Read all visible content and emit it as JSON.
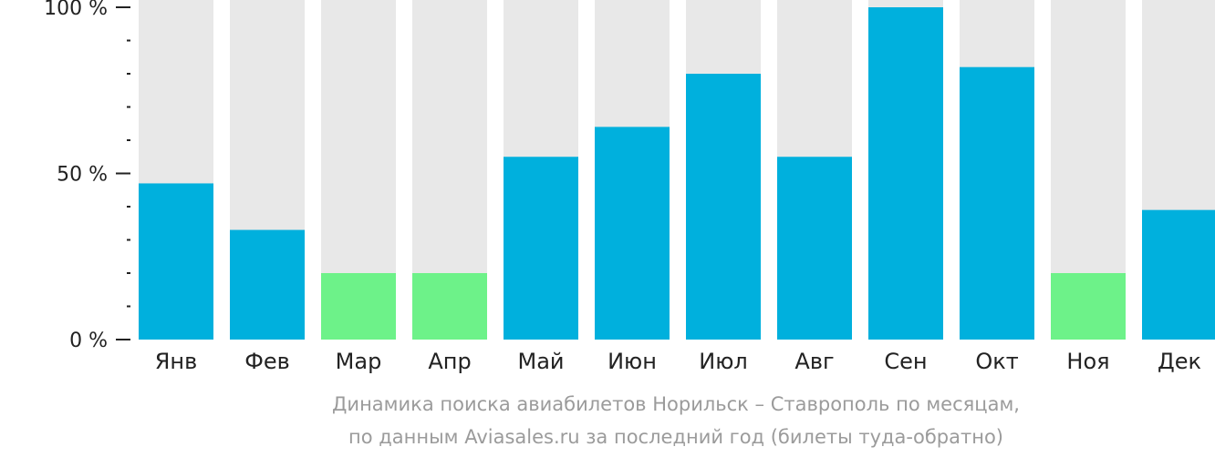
{
  "chart_data": {
    "type": "bar",
    "categories": [
      "Янв",
      "Фев",
      "Мар",
      "Апр",
      "Май",
      "Июн",
      "Июл",
      "Авг",
      "Сен",
      "Окт",
      "Ноя",
      "Дек"
    ],
    "values": [
      47,
      33,
      20,
      20,
      55,
      64,
      80,
      55,
      100,
      82,
      20,
      39
    ],
    "levels": [
      "normal",
      "normal",
      "low",
      "low",
      "normal",
      "normal",
      "normal",
      "normal",
      "normal",
      "normal",
      "low",
      "normal"
    ],
    "ylim": [
      0,
      100
    ],
    "yticks": [
      {
        "value": 0,
        "label": "0 %"
      },
      {
        "value": 50,
        "label": "50 %"
      },
      {
        "value": 100,
        "label": "100 %"
      }
    ],
    "minor_tick_step": 10,
    "colors": {
      "normal": "#00b0dd",
      "low": "#6df289",
      "track": "#e8e8e8",
      "axis": "#222222"
    },
    "caption_line1": "Динамика поиска авиабилетов Норильск – Ставрополь по месяцам,",
    "caption_line2": "по данным Aviasales.ru за последний год (билеты туда-обратно)"
  }
}
